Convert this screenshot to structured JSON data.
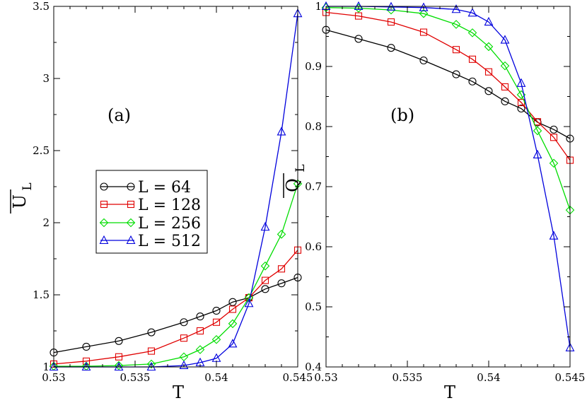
{
  "colors": {
    "L64": "#000000",
    "L128": "#e00000",
    "L256": "#00dd00",
    "L512": "#0000dd"
  },
  "chart_data": [
    {
      "type": "line",
      "panel_label": "(a)",
      "xlabel": "T",
      "ylabel": "U",
      "ylabel_sub": "L",
      "xlim": [
        0.53,
        0.545
      ],
      "ylim": [
        1,
        3.5
      ],
      "xticks": [
        0.53,
        0.535,
        0.54,
        0.545
      ],
      "xtick_labels": [
        "0.53",
        "0.535",
        "0.54",
        "0.545"
      ],
      "yticks": [
        1,
        1.5,
        2,
        2.5,
        3,
        3.5
      ],
      "ytick_labels": [
        "1",
        "1.5",
        "2",
        "2.5",
        "3",
        "3.5"
      ],
      "legend": {
        "placement": "middle-left"
      },
      "series": [
        {
          "name": "L = 64",
          "marker": "circle",
          "color": "#000000",
          "x": [
            0.53,
            0.532,
            0.534,
            0.536,
            0.538,
            0.539,
            0.54,
            0.541,
            0.542,
            0.543,
            0.544,
            0.545
          ],
          "y": [
            1.1,
            1.14,
            1.18,
            1.24,
            1.31,
            1.35,
            1.39,
            1.45,
            1.48,
            1.54,
            1.58,
            1.62
          ]
        },
        {
          "name": "L = 128",
          "marker": "square",
          "color": "#e00000",
          "x": [
            0.53,
            0.532,
            0.534,
            0.536,
            0.538,
            0.539,
            0.54,
            0.541,
            0.542,
            0.543,
            0.544,
            0.545
          ],
          "y": [
            1.02,
            1.04,
            1.07,
            1.11,
            1.2,
            1.25,
            1.31,
            1.4,
            1.48,
            1.6,
            1.68,
            1.81
          ]
        },
        {
          "name": "L = 256",
          "marker": "diamond",
          "color": "#00dd00",
          "x": [
            0.53,
            0.532,
            0.534,
            0.536,
            0.538,
            0.539,
            0.54,
            0.541,
            0.542,
            0.543,
            0.544,
            0.545
          ],
          "y": [
            1.005,
            1.005,
            1.01,
            1.02,
            1.07,
            1.12,
            1.19,
            1.3,
            1.48,
            1.7,
            1.92,
            2.27
          ]
        },
        {
          "name": "L = 512",
          "marker": "triangle",
          "color": "#0000dd",
          "x": [
            0.53,
            0.532,
            0.534,
            0.536,
            0.538,
            0.539,
            0.54,
            0.541,
            0.542,
            0.543,
            0.544,
            0.545
          ],
          "y": [
            1.0,
            1.0,
            1.0,
            1.0,
            1.01,
            1.03,
            1.06,
            1.16,
            1.44,
            1.97,
            2.63,
            3.45
          ]
        }
      ]
    },
    {
      "type": "line",
      "panel_label": "(b)",
      "xlabel": "T",
      "ylabel": "Q",
      "ylabel_sub": "L",
      "xlim": [
        0.53,
        0.545
      ],
      "ylim": [
        0.4,
        1.0
      ],
      "xticks": [
        0.53,
        0.535,
        0.54,
        0.545
      ],
      "xtick_labels": [
        "0.53",
        "0.535",
        "0.54",
        "0.545"
      ],
      "yticks": [
        0.4,
        0.5,
        0.6,
        0.7,
        0.8,
        0.9,
        1.0
      ],
      "ytick_labels": [
        "0.4",
        "0.5",
        "0.6",
        "0.7",
        "0.8",
        "0.9",
        "1"
      ],
      "series": [
        {
          "name": "L = 64",
          "marker": "circle",
          "color": "#000000",
          "x": [
            0.53,
            0.532,
            0.534,
            0.536,
            0.538,
            0.539,
            0.54,
            0.541,
            0.542,
            0.543,
            0.544,
            0.545
          ],
          "y": [
            0.961,
            0.946,
            0.931,
            0.91,
            0.887,
            0.875,
            0.859,
            0.842,
            0.83,
            0.807,
            0.795,
            0.78
          ]
        },
        {
          "name": "L = 128",
          "marker": "square",
          "color": "#e00000",
          "x": [
            0.53,
            0.532,
            0.534,
            0.536,
            0.538,
            0.539,
            0.54,
            0.541,
            0.542,
            0.543,
            0.544,
            0.545
          ],
          "y": [
            0.99,
            0.984,
            0.974,
            0.957,
            0.928,
            0.912,
            0.891,
            0.866,
            0.84,
            0.808,
            0.782,
            0.744
          ]
        },
        {
          "name": "L = 256",
          "marker": "diamond",
          "color": "#00dd00",
          "x": [
            0.53,
            0.532,
            0.534,
            0.536,
            0.538,
            0.539,
            0.54,
            0.541,
            0.542,
            0.543,
            0.544,
            0.545
          ],
          "y": [
            0.998,
            0.997,
            0.994,
            0.988,
            0.97,
            0.956,
            0.933,
            0.901,
            0.853,
            0.793,
            0.739,
            0.661
          ]
        },
        {
          "name": "L = 512",
          "marker": "triangle",
          "color": "#0000dd",
          "x": [
            0.53,
            0.532,
            0.534,
            0.536,
            0.538,
            0.539,
            0.54,
            0.541,
            0.542,
            0.543,
            0.544,
            0.545
          ],
          "y": [
            1.0,
            1.0,
            0.999,
            0.998,
            0.995,
            0.989,
            0.974,
            0.944,
            0.872,
            0.753,
            0.618,
            0.432
          ]
        }
      ]
    }
  ]
}
